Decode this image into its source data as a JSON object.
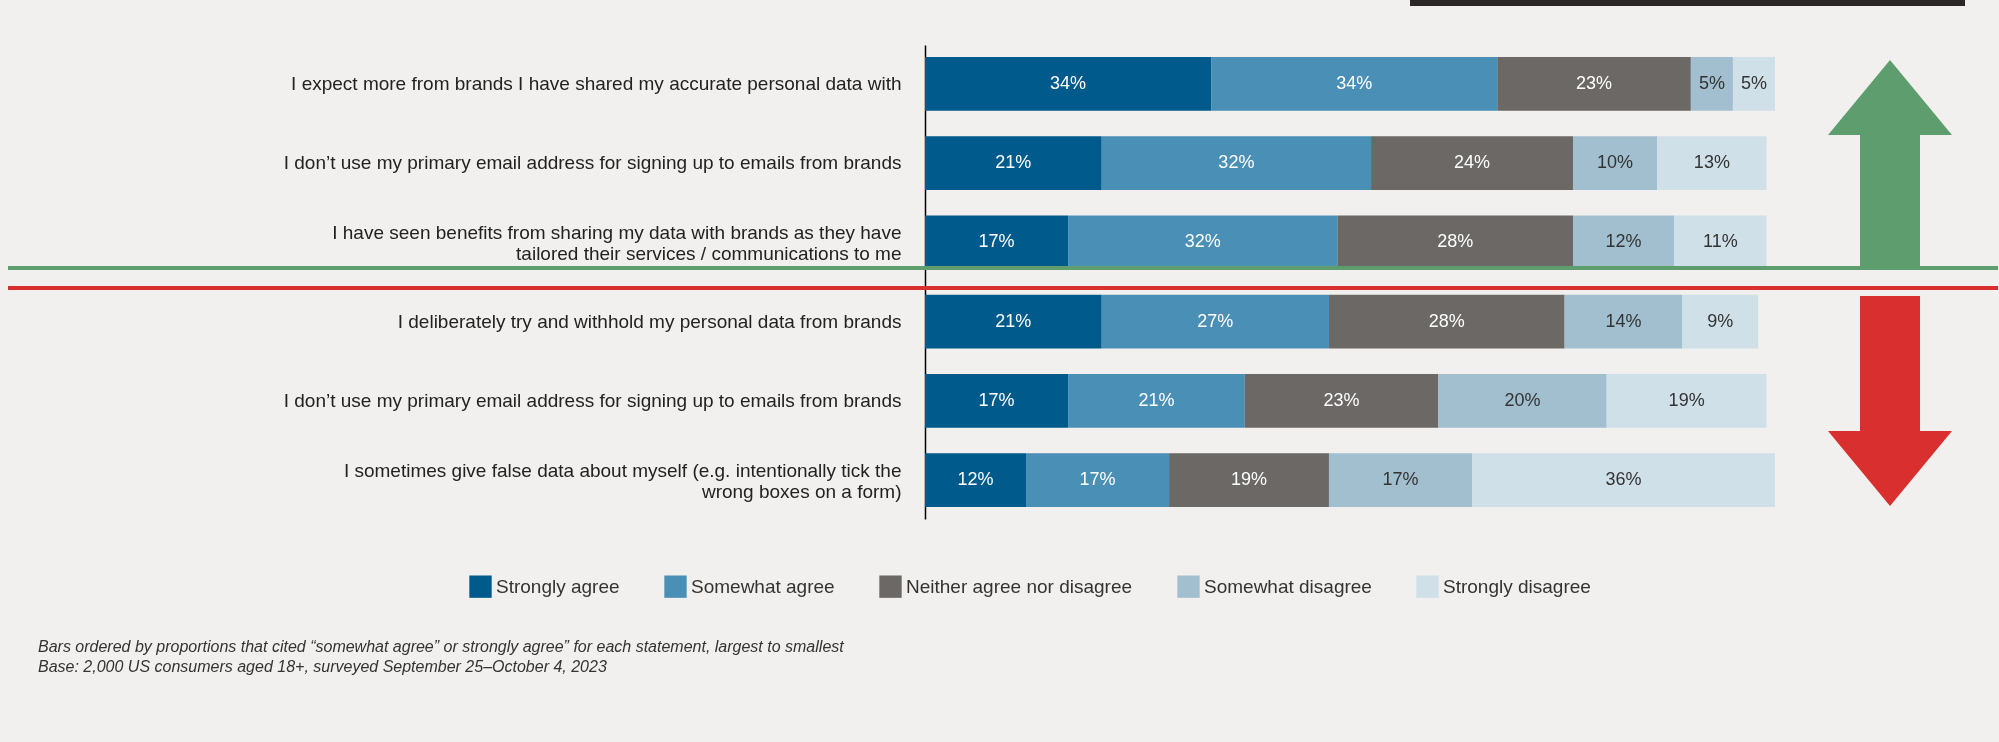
{
  "chart_data": {
    "type": "bar",
    "orientation": "horizontal",
    "stacked": true,
    "categories": [
      "I expect more from brands I have shared my accurate personal data with",
      "I don’t use my primary email address for signing up to emails from brands",
      "I have seen benefits from sharing my data with brands as they have tailored their services / communications to me",
      "I deliberately try and withhold my personal data from brands",
      "I don’t use my primary email address for signing up to emails from brands",
      "I sometimes give false data about myself (e.g. intentionally tick the wrong boxes on a form)"
    ],
    "series": [
      {
        "name": "Strongly agree",
        "color": "#005b8c",
        "values": [
          34,
          21,
          17,
          21,
          17,
          12
        ],
        "value_labels": [
          "34%",
          "21%",
          "17%",
          "21%",
          "17%",
          "12%"
        ]
      },
      {
        "name": "Somewhat agree",
        "color": "#4a8fb5",
        "values": [
          34,
          32,
          32,
          27,
          21,
          17
        ],
        "value_labels": [
          "34%",
          "32%",
          "32%",
          "27%",
          "21%",
          "17%"
        ]
      },
      {
        "name": "Neither agree nor disagree",
        "color": "#6b6866",
        "values": [
          23,
          24,
          28,
          28,
          23,
          19
        ],
        "value_labels": [
          "23%",
          "24%",
          "28%",
          "28%",
          "23%",
          "19%"
        ]
      },
      {
        "name": "Somewhat disagree",
        "color": "#a2bfcf",
        "values": [
          5,
          10,
          12,
          14,
          20,
          17
        ],
        "value_labels": [
          "5%",
          "10%",
          "12%",
          "14%",
          "20%",
          "17%"
        ]
      },
      {
        "name": "Strongly disagree",
        "color": "#d0e0e8",
        "values": [
          5,
          13,
          11,
          9,
          19,
          36
        ],
        "value_labels": [
          "5%",
          "13%",
          "11%",
          "9%",
          "19%",
          "36%"
        ]
      }
    ],
    "legend": "bottom",
    "annotations": [
      "Bars ordered by proportions that cited “somewhat agree” or strongly agree” for each statement, largest to smallest",
      "Base: 2,000 US consumers aged 18+, surveyed September 25–October 4, 2023"
    ]
  }
}
